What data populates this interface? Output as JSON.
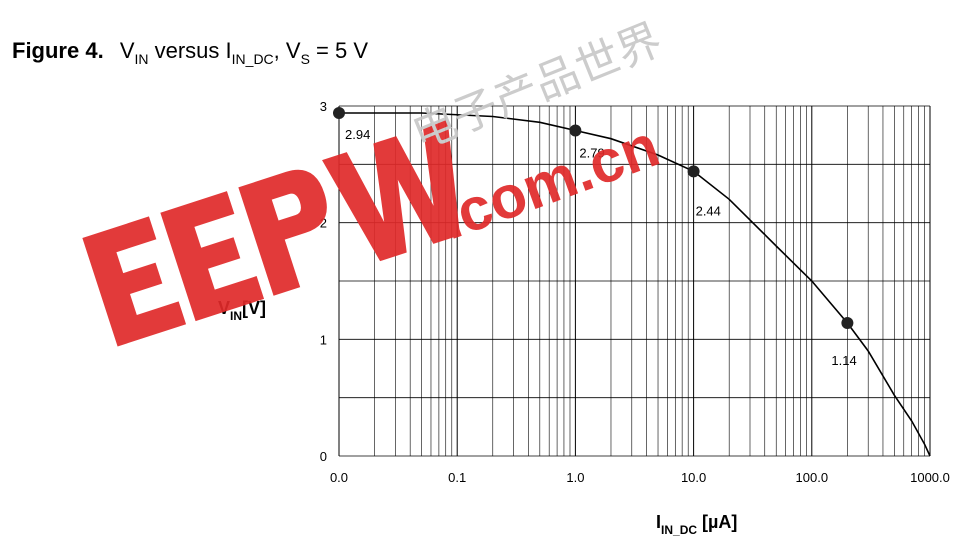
{
  "figure": {
    "label": "Figure 4.",
    "title_parts": {
      "v": "V",
      "v_sub": "IN",
      "mid": " versus ",
      "i": "I",
      "i_sub": "IN_DC",
      "sep": ", ",
      "vs": "V",
      "vs_sub": "S",
      "tail": " = 5 V"
    }
  },
  "watermark": {
    "brand": "EEPW",
    "domain": ".com.cn",
    "chinese": "电子产品世界",
    "color": "#e02a2a"
  },
  "chart_data": {
    "type": "line",
    "x_scale": "log",
    "x_ticks": [
      0.01,
      0.1,
      1,
      10,
      100,
      1000
    ],
    "x_tick_labels": [
      "0.0",
      "0.1",
      "1.0",
      "10.0",
      "100.0",
      "1000.0"
    ],
    "y_ticks": [
      0,
      1,
      2,
      3
    ],
    "y_tick_labels": [
      "0",
      "1",
      "2",
      "3"
    ],
    "xlim": [
      0.01,
      1000
    ],
    "ylim": [
      0,
      3
    ],
    "xlabel": {
      "main": "I",
      "sub": "IN_DC",
      "unit": " [µA]"
    },
    "ylabel": {
      "main": "V",
      "sub": "IN",
      "unit": "[V]"
    },
    "grid": true,
    "series": [
      {
        "x": [
          0.01,
          0.05,
          0.2,
          0.5,
          1,
          2,
          5,
          10,
          20,
          50,
          100,
          200,
          300,
          500,
          700,
          900,
          1000
        ],
        "y": [
          2.94,
          2.94,
          2.91,
          2.86,
          2.79,
          2.72,
          2.58,
          2.44,
          2.2,
          1.8,
          1.5,
          1.14,
          0.9,
          0.52,
          0.3,
          0.1,
          0.0
        ]
      }
    ],
    "markers": [
      {
        "x": 0.01,
        "y": 2.94,
        "label": "2.94"
      },
      {
        "x": 1,
        "y": 2.79,
        "label": "2.79"
      },
      {
        "x": 10,
        "y": 2.44,
        "label": "2.44"
      },
      {
        "x": 200,
        "y": 1.14,
        "label": "1.14"
      }
    ]
  }
}
